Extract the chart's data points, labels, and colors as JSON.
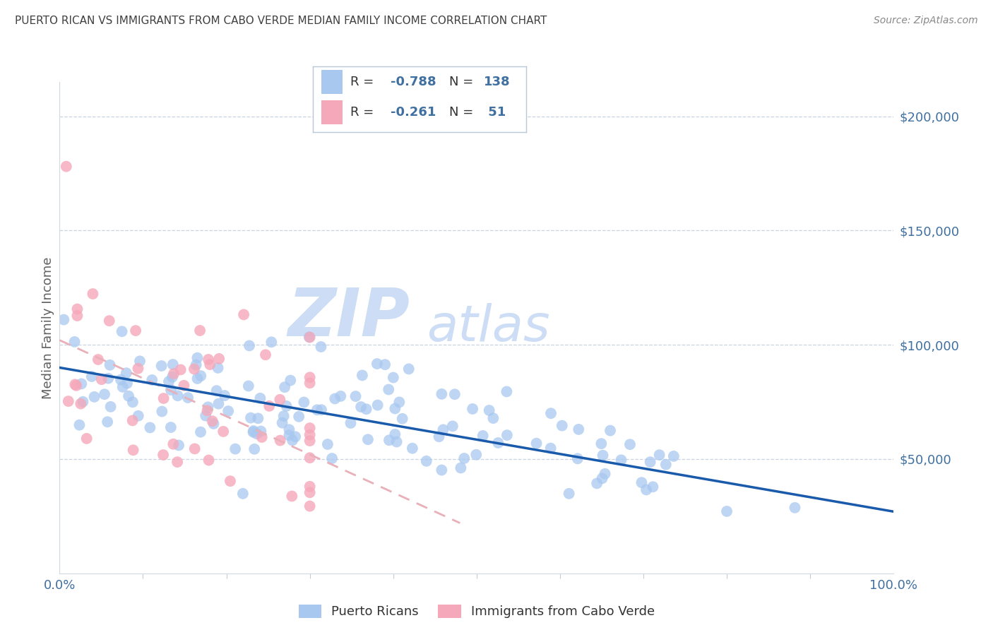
{
  "title": "PUERTO RICAN VS IMMIGRANTS FROM CABO VERDE MEDIAN FAMILY INCOME CORRELATION CHART",
  "source": "Source: ZipAtlas.com",
  "ylabel": "Median Family Income",
  "xlim": [
    0,
    1.0
  ],
  "ylim": [
    0,
    215000
  ],
  "xtick_labels": [
    "0.0%",
    "100.0%"
  ],
  "ytick_labels": [
    "$50,000",
    "$100,000",
    "$150,000",
    "$200,000"
  ],
  "ytick_values": [
    50000,
    100000,
    150000,
    200000
  ],
  "blue_color": "#a8c8f0",
  "pink_color": "#f5a8ba",
  "blue_line_color": "#1a5aaa",
  "pink_line_color": "#e8b0b8",
  "watermark_zip": "ZIP",
  "watermark_atlas": "atlas",
  "watermark_color": "#ccddf5",
  "background_color": "#ffffff",
  "grid_color": "#c8d4e0",
  "title_color": "#404040",
  "axis_label_color": "#606060",
  "tick_color": "#4070a0",
  "source_color": "#888888",
  "legend_text_color": "#333333",
  "legend_R_color": "#4070a0",
  "legend_N_color": "#4070a0",
  "blue_line_x0": 0.0,
  "blue_line_y0": 90000,
  "blue_line_x1": 1.0,
  "blue_line_y1": 27000,
  "pink_line_x0": 0.0,
  "pink_line_y0": 102000,
  "pink_line_x1": 0.48,
  "pink_line_y1": 22000
}
